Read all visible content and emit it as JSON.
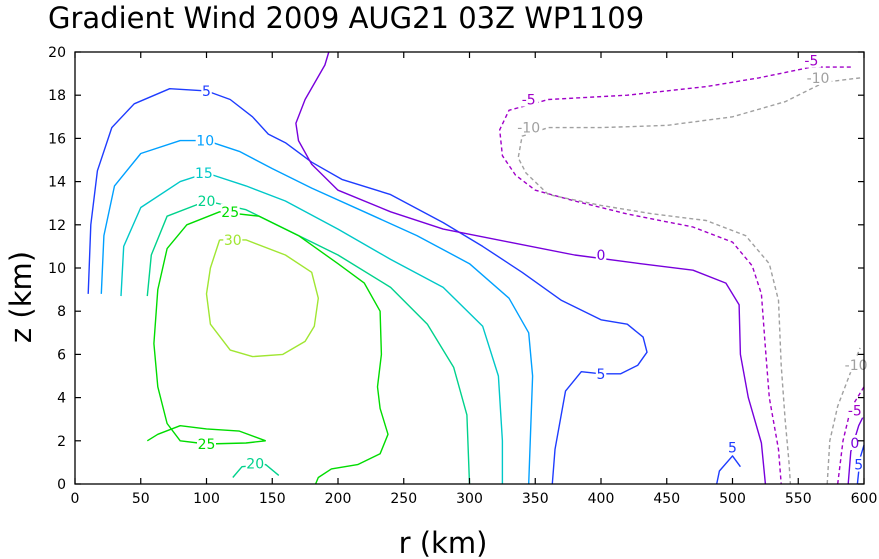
{
  "chart_data": {
    "type": "contour",
    "title": "Gradient Wind 2009 AUG21 03Z  WP1109",
    "xlabel": "r (km)",
    "ylabel": "z (km)",
    "xlim": [
      0,
      600
    ],
    "ylim": [
      0,
      20
    ],
    "xticks": [
      "0",
      "50",
      "100",
      "150",
      "200",
      "250",
      "300",
      "350",
      "400",
      "450",
      "500",
      "550",
      "600"
    ],
    "yticks": [
      "0",
      "2",
      "4",
      "6",
      "8",
      "10",
      "12",
      "14",
      "16",
      "18",
      "20"
    ],
    "grid": false,
    "contour_levels": [
      {
        "level": -10,
        "color": "#a0a0a0",
        "dashed": true
      },
      {
        "level": -5,
        "color": "#a000c8",
        "dashed": true
      },
      {
        "level": 0,
        "color": "#7800dc",
        "dashed": false
      },
      {
        "level": 5,
        "color": "#1e3cff",
        "dashed": false
      },
      {
        "level": 10,
        "color": "#00a0ff",
        "dashed": false
      },
      {
        "level": 15,
        "color": "#00c8c8",
        "dashed": false
      },
      {
        "level": 20,
        "color": "#00d28c",
        "dashed": false
      },
      {
        "level": 25,
        "color": "#00dc00",
        "dashed": false
      },
      {
        "level": 30,
        "color": "#a0e632",
        "dashed": false
      }
    ],
    "contours": [
      {
        "level": 5,
        "points": [
          [
            10,
            8.8
          ],
          [
            12,
            12
          ],
          [
            17,
            14.5
          ],
          [
            28,
            16.5
          ],
          [
            45,
            17.6
          ],
          [
            72,
            18.3
          ],
          [
            100,
            18.2
          ],
          [
            118,
            17.8
          ],
          [
            135,
            17
          ],
          [
            147,
            16.2
          ],
          [
            160,
            15.8
          ],
          [
            180,
            14.9
          ],
          [
            203,
            14.1
          ],
          [
            240,
            13.4
          ],
          [
            280,
            12.1
          ],
          [
            310,
            11
          ],
          [
            340,
            9.8
          ],
          [
            370,
            8.5
          ],
          [
            400,
            7.6
          ],
          [
            420,
            7.4
          ],
          [
            432,
            6.8
          ],
          [
            435,
            6.1
          ],
          [
            428,
            5.5
          ],
          [
            415,
            5.1
          ],
          [
            400,
            5.1
          ],
          [
            385,
            5.2
          ],
          [
            373,
            4.3
          ],
          [
            365,
            1.6
          ],
          [
            363,
            0
          ]
        ]
      },
      {
        "level": 5,
        "points": [
          [
            488,
            0
          ],
          [
            490,
            0.6
          ],
          [
            500,
            1.3
          ],
          [
            506,
            0.8
          ]
        ]
      },
      {
        "level": 10,
        "points": [
          [
            20,
            8.8
          ],
          [
            22,
            11.5
          ],
          [
            30,
            13.8
          ],
          [
            50,
            15.3
          ],
          [
            80,
            15.9
          ],
          [
            100,
            15.9
          ],
          [
            125,
            15.4
          ],
          [
            150,
            14.6
          ],
          [
            180,
            13.7
          ],
          [
            220,
            12.6
          ],
          [
            260,
            11.5
          ],
          [
            300,
            10.2
          ],
          [
            330,
            8.6
          ],
          [
            345,
            7
          ],
          [
            348,
            5
          ],
          [
            345,
            0
          ]
        ]
      },
      {
        "level": 15,
        "points": [
          [
            35,
            8.7
          ],
          [
            37,
            11
          ],
          [
            50,
            12.8
          ],
          [
            80,
            14
          ],
          [
            100,
            14.4
          ],
          [
            130,
            13.8
          ],
          [
            160,
            13.1
          ],
          [
            200,
            11.8
          ],
          [
            240,
            10.4
          ],
          [
            280,
            9.1
          ],
          [
            310,
            7.3
          ],
          [
            322,
            5
          ],
          [
            325,
            2
          ],
          [
            325,
            0
          ]
        ]
      },
      {
        "level": 20,
        "points": [
          [
            55,
            8.7
          ],
          [
            58,
            10.6
          ],
          [
            70,
            12.4
          ],
          [
            100,
            13.1
          ],
          [
            130,
            12.7
          ],
          [
            160,
            11.8
          ],
          [
            200,
            10.6
          ],
          [
            240,
            9.1
          ],
          [
            268,
            7.4
          ],
          [
            288,
            5.4
          ],
          [
            298,
            3.2
          ],
          [
            300,
            0
          ]
        ]
      },
      {
        "level": 20,
        "points": [
          [
            120,
            0.3
          ],
          [
            127,
            0.8
          ],
          [
            145,
            0.9
          ],
          [
            155,
            0.4
          ]
        ]
      },
      {
        "level": 25,
        "points": [
          [
            145,
            2
          ],
          [
            130,
            1.9
          ],
          [
            100,
            1.85
          ],
          [
            80,
            2.0
          ],
          [
            70,
            2.8
          ],
          [
            63,
            4.5
          ],
          [
            60,
            6.5
          ],
          [
            63,
            9
          ],
          [
            70,
            10.9
          ],
          [
            85,
            12.0
          ],
          [
            110,
            12.6
          ],
          [
            140,
            12.4
          ],
          [
            170,
            11.5
          ],
          [
            200,
            10.2
          ],
          [
            220,
            9.3
          ],
          [
            232,
            8
          ],
          [
            233,
            6
          ],
          [
            230,
            4.5
          ],
          [
            232,
            3.5
          ],
          [
            238,
            2.3
          ],
          [
            232,
            1.4
          ],
          [
            215,
            0.9
          ],
          [
            195,
            0.7
          ],
          [
            185,
            0.3
          ],
          [
            183,
            0
          ]
        ]
      },
      {
        "level": 25,
        "points": [
          [
            55,
            2.0
          ],
          [
            63,
            2.3
          ],
          [
            80,
            2.7
          ],
          [
            100,
            2.55
          ],
          [
            125,
            2.45
          ],
          [
            145,
            2.0
          ]
        ]
      },
      {
        "level": 30,
        "points": [
          [
            110,
            11.3
          ],
          [
            130,
            11.3
          ],
          [
            160,
            10.6
          ],
          [
            180,
            9.8
          ],
          [
            185,
            8.6
          ],
          [
            182,
            7.3
          ],
          [
            175,
            6.6
          ],
          [
            158,
            6.0
          ],
          [
            135,
            5.9
          ],
          [
            118,
            6.2
          ],
          [
            103,
            7.4
          ],
          [
            100,
            8.8
          ],
          [
            103,
            10
          ],
          [
            110,
            11.3
          ]
        ]
      },
      {
        "level": 0,
        "points": [
          [
            193,
            20
          ],
          [
            190,
            19.4
          ],
          [
            175,
            17.8
          ],
          [
            168,
            16.7
          ],
          [
            170,
            15.9
          ],
          [
            180,
            14.8
          ],
          [
            200,
            13.6
          ],
          [
            240,
            12.6
          ],
          [
            280,
            11.8
          ],
          [
            330,
            11.2
          ],
          [
            380,
            10.6
          ],
          [
            430,
            10.2
          ],
          [
            470,
            9.9
          ],
          [
            495,
            9.3
          ],
          [
            505,
            8.3
          ],
          [
            506,
            6
          ],
          [
            512,
            4
          ],
          [
            522,
            1.9
          ],
          [
            525,
            0
          ]
        ]
      },
      {
        "level": -5,
        "points": [
          [
            590,
            19.3
          ],
          [
            560,
            19.3
          ],
          [
            520,
            18.8
          ],
          [
            480,
            18.4
          ],
          [
            420,
            18.0
          ],
          [
            360,
            17.8
          ],
          [
            330,
            17.3
          ],
          [
            323,
            16.4
          ],
          [
            325,
            15.2
          ],
          [
            335,
            14.3
          ],
          [
            350,
            13.6
          ],
          [
            380,
            13.1
          ],
          [
            420,
            12.5
          ],
          [
            470,
            11.9
          ],
          [
            500,
            11.2
          ],
          [
            515,
            10.1
          ],
          [
            522,
            8.8
          ],
          [
            525,
            6.3
          ],
          [
            528,
            4
          ],
          [
            535,
            1.6
          ],
          [
            537,
            0
          ]
        ]
      },
      {
        "level": -10,
        "points": [
          [
            597,
            18.8
          ],
          [
            570,
            18.6
          ],
          [
            540,
            17.7
          ],
          [
            500,
            17.0
          ],
          [
            450,
            16.6
          ],
          [
            400,
            16.5
          ],
          [
            360,
            16.5
          ],
          [
            340,
            16.1
          ],
          [
            337,
            15.1
          ],
          [
            343,
            14.4
          ],
          [
            360,
            13.4
          ],
          [
            400,
            12.9
          ],
          [
            440,
            12.5
          ],
          [
            480,
            12.2
          ],
          [
            510,
            11.5
          ],
          [
            528,
            10.2
          ],
          [
            535,
            8.5
          ],
          [
            537,
            5.5
          ],
          [
            540,
            3
          ],
          [
            543,
            1
          ],
          [
            544,
            0
          ]
        ]
      },
      {
        "level": -10,
        "points": [
          [
            572,
            0
          ],
          [
            574,
            2
          ],
          [
            580,
            3.6
          ],
          [
            590,
            5.2
          ],
          [
            597,
            6.3
          ]
        ]
      },
      {
        "level": -5,
        "points": [
          [
            580,
            0
          ],
          [
            584,
            2
          ],
          [
            590,
            3.5
          ],
          [
            600,
            4.5
          ]
        ]
      },
      {
        "level": 0,
        "points": [
          [
            588,
            0
          ],
          [
            590,
            1.5
          ],
          [
            596,
            2.7
          ],
          [
            600,
            3.2
          ]
        ]
      },
      {
        "level": 5,
        "points": [
          [
            595,
            0
          ],
          [
            597,
            1.2
          ],
          [
            600,
            1.8
          ]
        ]
      }
    ],
    "annotations": [
      {
        "text": "5",
        "x": 100,
        "y": 18.2,
        "color": "#1e3cff"
      },
      {
        "text": "10",
        "x": 99,
        "y": 15.9,
        "color": "#00a0ff"
      },
      {
        "text": "15",
        "x": 98,
        "y": 14.4,
        "color": "#00c8c8"
      },
      {
        "text": "20",
        "x": 100,
        "y": 13.1,
        "color": "#00d28c"
      },
      {
        "text": "25",
        "x": 118,
        "y": 12.6,
        "color": "#00dc00"
      },
      {
        "text": "30",
        "x": 120,
        "y": 11.3,
        "color": "#a0e632"
      },
      {
        "text": "25",
        "x": 100,
        "y": 1.85,
        "color": "#00dc00"
      },
      {
        "text": "20",
        "x": 137,
        "y": 0.95,
        "color": "#00d28c"
      },
      {
        "text": "5",
        "x": 400,
        "y": 5.1,
        "color": "#1e3cff"
      },
      {
        "text": "5",
        "x": 500,
        "y": 1.7,
        "color": "#1e3cff"
      },
      {
        "text": "0",
        "x": 400,
        "y": 10.6,
        "color": "#7800dc"
      },
      {
        "text": "-5",
        "x": 345,
        "y": 17.8,
        "color": "#a000c8"
      },
      {
        "text": "-5",
        "x": 560,
        "y": 19.6,
        "color": "#a000c8"
      },
      {
        "text": "-10",
        "x": 345,
        "y": 16.5,
        "color": "#a0a0a0"
      },
      {
        "text": "-10",
        "x": 565,
        "y": 18.8,
        "color": "#a0a0a0"
      },
      {
        "text": "-10",
        "x": 594,
        "y": 5.5,
        "color": "#a0a0a0"
      },
      {
        "text": "-5",
        "x": 593,
        "y": 3.4,
        "color": "#a000c8"
      },
      {
        "text": "0",
        "x": 593,
        "y": 1.9,
        "color": "#7800dc"
      },
      {
        "text": "5",
        "x": 596,
        "y": 0.9,
        "color": "#1e3cff"
      }
    ]
  }
}
